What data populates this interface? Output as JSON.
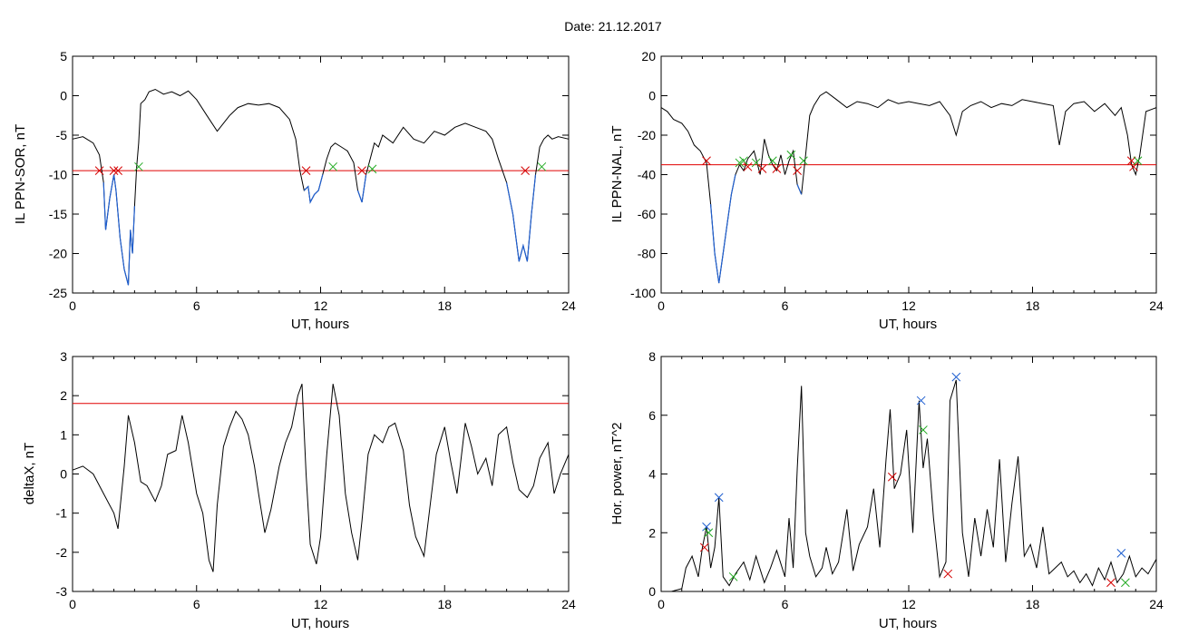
{
  "figure": {
    "title": "Date:  21.12.2017"
  },
  "chart_data": [
    {
      "id": "sor",
      "type": "line",
      "title": "",
      "xlabel": "UT, hours",
      "ylabel": "IL PPN-SOR, nT",
      "xlim": [
        0,
        24
      ],
      "ylim": [
        -25,
        5
      ],
      "xticks": [
        0,
        6,
        12,
        18,
        24
      ],
      "yticks": [
        5,
        0,
        -5,
        -10,
        -15,
        -20,
        -25
      ],
      "threshold": -9.5,
      "series": [
        {
          "color": "#000000",
          "x": [
            0,
            0.5,
            1.0,
            1.3,
            1.5,
            1.6,
            1.8,
            2.0,
            2.1,
            2.3,
            2.5,
            2.7,
            2.8,
            2.9,
            3.0,
            3.1,
            3.2,
            3.3,
            3.5,
            3.7,
            4.0,
            4.4,
            4.8,
            5.2,
            5.6,
            6.0,
            6.5,
            7.0,
            7.3,
            7.6,
            8.0,
            8.5,
            9.0,
            9.5,
            10.0,
            10.5,
            10.8,
            11.0,
            11.2,
            11.4,
            11.5,
            11.7,
            11.9,
            12.1,
            12.3,
            12.5,
            12.7,
            13.0,
            13.3,
            13.6,
            13.8,
            14.0,
            14.2,
            14.4,
            14.6,
            14.8,
            15.0,
            15.5,
            16.0,
            16.5,
            17.0,
            17.5,
            18.0,
            18.5,
            19.0,
            19.5,
            20.0,
            20.3,
            20.6,
            21.0,
            21.3,
            21.6,
            21.8,
            22.0,
            22.2,
            22.4,
            22.6,
            22.8,
            23.0,
            23.2,
            23.5,
            24.0
          ],
          "y": [
            -5.5,
            -5.2,
            -6.0,
            -7.5,
            -11.0,
            -17.0,
            -13.0,
            -10.0,
            -12.0,
            -18.0,
            -22.0,
            -24.0,
            -17.0,
            -20.0,
            -14.0,
            -9.0,
            -6.0,
            -1.0,
            -0.5,
            0.5,
            0.8,
            0.2,
            0.5,
            0.0,
            0.6,
            -0.5,
            -2.5,
            -4.5,
            -3.5,
            -2.5,
            -1.5,
            -1.0,
            -1.2,
            -1.0,
            -1.5,
            -3.0,
            -5.5,
            -9.5,
            -12.0,
            -11.5,
            -13.5,
            -12.5,
            -12.0,
            -10.0,
            -8.0,
            -6.5,
            -6.0,
            -6.5,
            -7.0,
            -8.5,
            -12.0,
            -13.5,
            -10.0,
            -8.0,
            -6.0,
            -6.5,
            -5.0,
            -6.0,
            -4.0,
            -5.5,
            -6.0,
            -4.5,
            -5.0,
            -4.0,
            -3.5,
            -4.0,
            -4.5,
            -5.5,
            -8.0,
            -11.0,
            -15.0,
            -21.0,
            -19.0,
            -21.0,
            -15.0,
            -10.0,
            -6.5,
            -5.5,
            -5.0,
            -5.5,
            -5.2,
            -5.5
          ]
        }
      ],
      "markers": [
        {
          "x": 1.3,
          "y": -9.5,
          "color": "#d40000"
        },
        {
          "x": 2.0,
          "y": -9.5,
          "color": "#d40000"
        },
        {
          "x": 2.2,
          "y": -9.5,
          "color": "#d40000"
        },
        {
          "x": 3.2,
          "y": -9.0,
          "color": "#22aa22"
        },
        {
          "x": 11.3,
          "y": -9.5,
          "color": "#d40000"
        },
        {
          "x": 12.6,
          "y": -9.0,
          "color": "#22aa22"
        },
        {
          "x": 14.0,
          "y": -9.5,
          "color": "#d40000"
        },
        {
          "x": 14.5,
          "y": -9.3,
          "color": "#22aa22"
        },
        {
          "x": 21.9,
          "y": -9.5,
          "color": "#d40000"
        },
        {
          "x": 22.7,
          "y": -9.0,
          "color": "#22aa22"
        }
      ]
    },
    {
      "id": "nal",
      "type": "line",
      "title": "",
      "xlabel": "UT, hours",
      "ylabel": "IL PPN-NAL, nT",
      "xlim": [
        0,
        24
      ],
      "ylim": [
        -100,
        20
      ],
      "xticks": [
        0,
        6,
        12,
        18,
        24
      ],
      "yticks": [
        20,
        0,
        -20,
        -40,
        -60,
        -80,
        -100
      ],
      "threshold": -35,
      "series": [
        {
          "color": "#000000",
          "x": [
            0,
            0.3,
            0.6,
            1.0,
            1.3,
            1.6,
            1.9,
            2.2,
            2.4,
            2.6,
            2.8,
            3.0,
            3.2,
            3.4,
            3.6,
            3.8,
            4.0,
            4.2,
            4.5,
            4.8,
            5.0,
            5.2,
            5.4,
            5.6,
            5.8,
            6.0,
            6.2,
            6.4,
            6.6,
            6.8,
            7.0,
            7.2,
            7.4,
            7.7,
            8.0,
            8.5,
            9.0,
            9.5,
            10.0,
            10.5,
            11.0,
            11.5,
            12.0,
            12.5,
            13.0,
            13.5,
            14.0,
            14.3,
            14.6,
            15.0,
            15.5,
            16.0,
            16.5,
            17.0,
            17.5,
            18.0,
            18.5,
            19.0,
            19.3,
            19.6,
            20.0,
            20.5,
            21.0,
            21.5,
            22.0,
            22.3,
            22.6,
            22.8,
            23.0,
            23.2,
            23.5,
            24.0
          ],
          "y": [
            -6,
            -8,
            -12,
            -14,
            -18,
            -25,
            -28,
            -34,
            -55,
            -80,
            -95,
            -80,
            -65,
            -50,
            -40,
            -35,
            -38,
            -32,
            -28,
            -40,
            -22,
            -30,
            -35,
            -38,
            -30,
            -40,
            -33,
            -28,
            -45,
            -50,
            -30,
            -10,
            -5,
            0,
            2,
            -2,
            -6,
            -3,
            -4,
            -6,
            -2,
            -4,
            -3,
            -4,
            -5,
            -3,
            -10,
            -20,
            -8,
            -5,
            -3,
            -6,
            -4,
            -5,
            -2,
            -3,
            -4,
            -5,
            -25,
            -8,
            -4,
            -3,
            -8,
            -4,
            -10,
            -6,
            -20,
            -35,
            -40,
            -30,
            -8,
            -6
          ]
        }
      ],
      "markers": [
        {
          "x": 2.2,
          "y": -33,
          "color": "#d40000"
        },
        {
          "x": 3.8,
          "y": -34,
          "color": "#22aa22"
        },
        {
          "x": 4.0,
          "y": -33,
          "color": "#22aa22"
        },
        {
          "x": 4.2,
          "y": -36,
          "color": "#d40000"
        },
        {
          "x": 4.6,
          "y": -34,
          "color": "#22aa22"
        },
        {
          "x": 4.9,
          "y": -37,
          "color": "#d40000"
        },
        {
          "x": 5.4,
          "y": -33,
          "color": "#22aa22"
        },
        {
          "x": 5.6,
          "y": -37,
          "color": "#d40000"
        },
        {
          "x": 6.3,
          "y": -30,
          "color": "#22aa22"
        },
        {
          "x": 6.6,
          "y": -38,
          "color": "#d40000"
        },
        {
          "x": 6.9,
          "y": -33,
          "color": "#22aa22"
        },
        {
          "x": 22.8,
          "y": -33,
          "color": "#d40000"
        },
        {
          "x": 22.9,
          "y": -36,
          "color": "#d40000"
        },
        {
          "x": 23.1,
          "y": -33,
          "color": "#22aa22"
        }
      ]
    },
    {
      "id": "deltax",
      "type": "line",
      "title": "",
      "xlabel": "UT, hours",
      "ylabel": "deltaX, nT",
      "xlim": [
        0,
        24
      ],
      "ylim": [
        -3,
        3
      ],
      "xticks": [
        0,
        6,
        12,
        18,
        24
      ],
      "yticks": [
        3,
        2,
        1,
        0,
        -1,
        -2,
        -3
      ],
      "threshold": 1.8,
      "series": [
        {
          "color": "#000000",
          "x": [
            0,
            0.5,
            1.0,
            1.5,
            2.0,
            2.2,
            2.5,
            2.7,
            3.0,
            3.3,
            3.6,
            4.0,
            4.3,
            4.6,
            5.0,
            5.3,
            5.6,
            6.0,
            6.3,
            6.6,
            6.8,
            7.0,
            7.3,
            7.6,
            7.9,
            8.2,
            8.5,
            8.8,
            9.0,
            9.3,
            9.6,
            10.0,
            10.3,
            10.6,
            10.9,
            11.1,
            11.3,
            11.5,
            11.8,
            12.0,
            12.3,
            12.6,
            12.9,
            13.2,
            13.5,
            13.8,
            14.0,
            14.3,
            14.6,
            15.0,
            15.3,
            15.6,
            16.0,
            16.3,
            16.6,
            17.0,
            17.3,
            17.6,
            18.0,
            18.3,
            18.6,
            19.0,
            19.3,
            19.6,
            20.0,
            20.3,
            20.6,
            21.0,
            21.3,
            21.6,
            22.0,
            22.3,
            22.6,
            23.0,
            23.3,
            23.6,
            24.0
          ],
          "y": [
            0.1,
            0.2,
            0.0,
            -0.5,
            -1.0,
            -1.4,
            0.2,
            1.5,
            0.8,
            -0.2,
            -0.3,
            -0.7,
            -0.3,
            0.5,
            0.6,
            1.5,
            0.8,
            -0.5,
            -1.0,
            -2.2,
            -2.5,
            -0.8,
            0.7,
            1.2,
            1.6,
            1.4,
            1.0,
            0.2,
            -0.5,
            -1.5,
            -0.9,
            0.2,
            0.8,
            1.2,
            2.0,
            2.3,
            0.0,
            -1.8,
            -2.3,
            -1.6,
            0.5,
            2.3,
            1.5,
            -0.5,
            -1.5,
            -2.2,
            -1.2,
            0.5,
            1.0,
            0.8,
            1.2,
            1.3,
            0.6,
            -0.8,
            -1.6,
            -2.1,
            -0.8,
            0.5,
            1.2,
            0.3,
            -0.5,
            1.3,
            0.7,
            0.0,
            0.4,
            -0.3,
            1.0,
            1.2,
            0.3,
            -0.4,
            -0.6,
            -0.3,
            0.4,
            0.8,
            -0.5,
            0.0,
            0.5
          ]
        }
      ],
      "markers": []
    },
    {
      "id": "power",
      "type": "line",
      "title": "",
      "xlabel": "UT, hours",
      "ylabel": "Hor. power, nT^2",
      "xlim": [
        0,
        24
      ],
      "ylim": [
        0,
        8
      ],
      "xticks": [
        0,
        6,
        12,
        18,
        24
      ],
      "yticks": [
        8,
        6,
        4,
        2,
        0
      ],
      "threshold": null,
      "series": [
        {
          "color": "#000000",
          "x": [
            0,
            0.5,
            1.0,
            1.2,
            1.5,
            1.8,
            2.0,
            2.2,
            2.4,
            2.6,
            2.8,
            3.0,
            3.3,
            3.6,
            4.0,
            4.3,
            4.6,
            5.0,
            5.3,
            5.6,
            6.0,
            6.2,
            6.4,
            6.6,
            6.8,
            7.0,
            7.2,
            7.5,
            7.8,
            8.0,
            8.3,
            8.6,
            9.0,
            9.3,
            9.6,
            10.0,
            10.3,
            10.6,
            10.9,
            11.1,
            11.3,
            11.6,
            11.9,
            12.2,
            12.5,
            12.7,
            12.9,
            13.2,
            13.5,
            13.8,
            14.0,
            14.3,
            14.6,
            14.9,
            15.2,
            15.5,
            15.8,
            16.1,
            16.4,
            16.7,
            17.0,
            17.3,
            17.6,
            17.9,
            18.2,
            18.5,
            18.8,
            19.1,
            19.4,
            19.7,
            20.0,
            20.3,
            20.6,
            20.9,
            21.2,
            21.5,
            21.8,
            22.1,
            22.4,
            22.7,
            23.0,
            23.3,
            23.6,
            24.0
          ],
          "y": [
            0,
            0,
            0.1,
            0.8,
            1.2,
            0.5,
            1.5,
            2.2,
            0.8,
            1.5,
            3.2,
            0.5,
            0.2,
            0.6,
            1.0,
            0.4,
            1.2,
            0.3,
            0.8,
            1.4,
            0.5,
            2.5,
            0.8,
            4.2,
            7.0,
            2.0,
            1.2,
            0.5,
            0.8,
            1.5,
            0.6,
            1.0,
            2.8,
            0.7,
            1.6,
            2.2,
            3.5,
            1.5,
            4.5,
            6.2,
            3.5,
            4.0,
            5.5,
            2.0,
            6.5,
            4.2,
            5.2,
            2.5,
            0.5,
            1.0,
            6.5,
            7.2,
            2.0,
            0.5,
            2.5,
            1.2,
            2.8,
            1.5,
            4.5,
            1.0,
            3.0,
            4.6,
            1.2,
            1.6,
            0.8,
            2.2,
            0.6,
            0.8,
            1.0,
            0.5,
            0.7,
            0.3,
            0.6,
            0.2,
            0.8,
            0.4,
            1.0,
            0.3,
            0.6,
            1.2,
            0.5,
            0.8,
            0.6,
            1.1
          ]
        }
      ],
      "markers": [
        {
          "x": 2.2,
          "y": 2.2,
          "color": "#1f5fd0"
        },
        {
          "x": 2.1,
          "y": 1.5,
          "color": "#d40000"
        },
        {
          "x": 2.3,
          "y": 2.0,
          "color": "#22aa22"
        },
        {
          "x": 2.8,
          "y": 3.2,
          "color": "#1f5fd0"
        },
        {
          "x": 3.5,
          "y": 0.5,
          "color": "#22aa22"
        },
        {
          "x": 11.2,
          "y": 3.9,
          "color": "#d40000"
        },
        {
          "x": 12.6,
          "y": 6.5,
          "color": "#1f5fd0"
        },
        {
          "x": 12.7,
          "y": 5.5,
          "color": "#22aa22"
        },
        {
          "x": 13.9,
          "y": 0.6,
          "color": "#d40000"
        },
        {
          "x": 14.3,
          "y": 7.3,
          "color": "#1f5fd0"
        },
        {
          "x": 22.3,
          "y": 1.3,
          "color": "#1f5fd0"
        },
        {
          "x": 21.8,
          "y": 0.3,
          "color": "#d40000"
        },
        {
          "x": 22.5,
          "y": 0.3,
          "color": "#22aa22"
        }
      ]
    }
  ],
  "colors": {
    "threshold_line": "#e00000",
    "below_threshold_trace": "#1f5fd0",
    "axis": "#000000"
  }
}
